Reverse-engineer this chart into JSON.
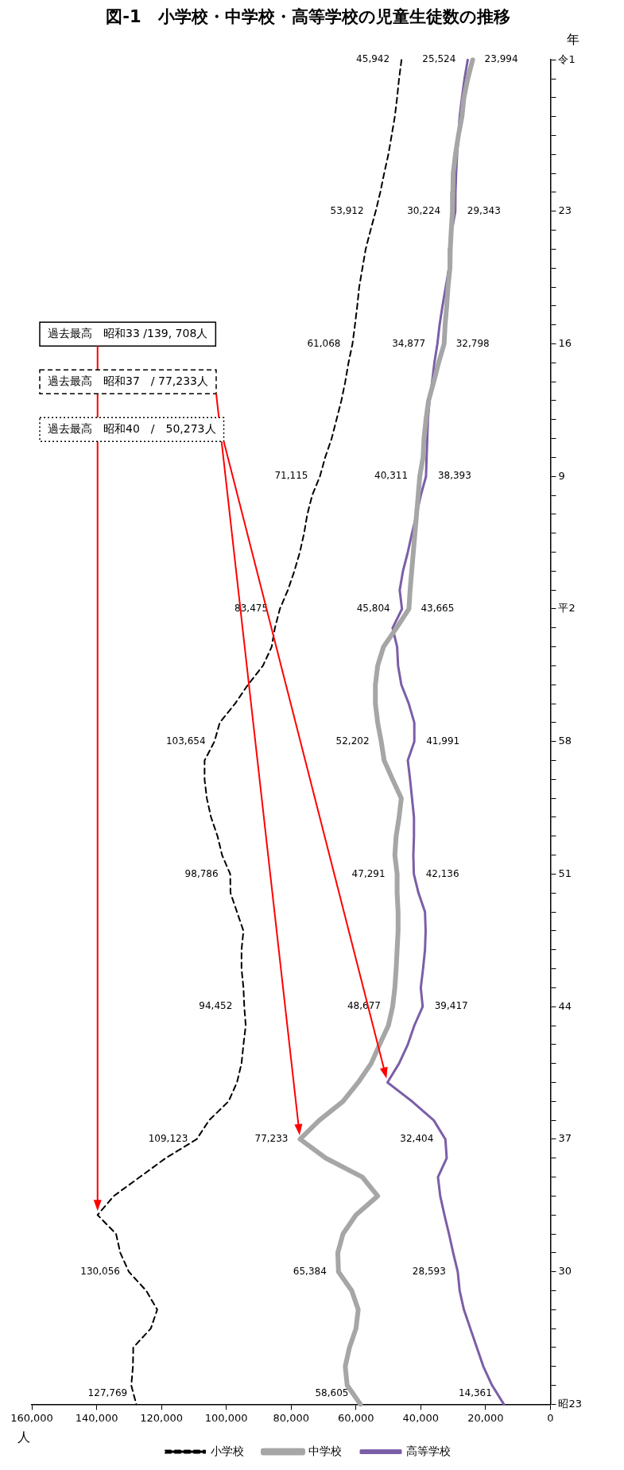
{
  "chart_data": {
    "type": "line",
    "orientation": "horizontal",
    "title": "図-1　小学校・中学校・高等学校の児童生徒数の推移",
    "xlabel": "人",
    "ylabel": "年",
    "categories": [
      "令1",
      null,
      null,
      null,
      null,
      null,
      null,
      null,
      "23",
      null,
      null,
      null,
      null,
      null,
      null,
      "16",
      null,
      null,
      null,
      null,
      null,
      null,
      "9",
      null,
      null,
      null,
      null,
      null,
      null,
      "平2",
      null,
      null,
      null,
      null,
      null,
      null,
      "58",
      null,
      null,
      null,
      null,
      null,
      null,
      "51",
      null,
      null,
      null,
      null,
      null,
      null,
      "44",
      null,
      null,
      null,
      null,
      null,
      null,
      "37",
      null,
      null,
      null,
      null,
      null,
      null,
      "30",
      null,
      null,
      null,
      null,
      null,
      null,
      "昭23"
    ],
    "series": [
      {
        "name": "小学校",
        "color": "#000000",
        "line_style": "dashed",
        "values": [
          45942,
          46700,
          47300,
          48000,
          49000,
          50000,
          51300,
          52500,
          53912,
          55500,
          57000,
          58000,
          59000,
          59600,
          60300,
          61068,
          62300,
          63300,
          64500,
          66000,
          67500,
          69500,
          71115,
          73500,
          75000,
          76000,
          77300,
          79000,
          81000,
          83475,
          85000,
          86000,
          88700,
          93300,
          97300,
          102000,
          103654,
          106700,
          106700,
          106000,
          104700,
          102700,
          101300,
          98786,
          98700,
          96700,
          94700,
          95300,
          95300,
          94700,
          94452,
          94000,
          94700,
          95300,
          96700,
          99300,
          105300,
          109123,
          118700,
          126700,
          134700,
          139708,
          134000,
          132700,
          130056,
          124700,
          121300,
          123300,
          128700,
          128800,
          129300,
          127769
        ],
        "value_labels": [
          "45,942",
          null,
          null,
          null,
          null,
          null,
          null,
          null,
          "53,912",
          null,
          null,
          null,
          null,
          null,
          null,
          "61,068",
          null,
          null,
          null,
          null,
          null,
          null,
          "71,115",
          null,
          null,
          null,
          null,
          null,
          null,
          "83,475",
          null,
          null,
          null,
          null,
          null,
          null,
          "103,654",
          null,
          null,
          null,
          null,
          null,
          null,
          "98,786",
          null,
          null,
          null,
          null,
          null,
          null,
          "94,452",
          null,
          null,
          null,
          null,
          null,
          null,
          "109,123",
          null,
          null,
          null,
          null,
          null,
          null,
          "130,056",
          null,
          null,
          null,
          null,
          null,
          null,
          "127,769"
        ]
      },
      {
        "name": "中学校",
        "color": "#a6a6a6",
        "line_style": "solid",
        "values": [
          23994,
          25500,
          26700,
          27300,
          28400,
          29300,
          30000,
          30100,
          30224,
          30600,
          30900,
          31000,
          31600,
          32000,
          32500,
          32798,
          34500,
          36000,
          37600,
          38400,
          39000,
          39300,
          40311,
          40800,
          41300,
          41800,
          42300,
          42800,
          43300,
          43665,
          47500,
          51500,
          53300,
          54000,
          54000,
          53300,
          52202,
          51300,
          48700,
          46000,
          46700,
          47600,
          48000,
          47291,
          47300,
          47000,
          47000,
          47300,
          47600,
          48000,
          48677,
          50000,
          52700,
          55300,
          59300,
          64000,
          71300,
          77233,
          69300,
          58000,
          53300,
          60000,
          64000,
          65600,
          65384,
          61300,
          59300,
          60000,
          62000,
          63300,
          62700,
          58605
        ],
        "value_labels": [
          "23,994",
          null,
          null,
          null,
          null,
          null,
          null,
          null,
          "30,224",
          null,
          null,
          null,
          null,
          null,
          null,
          "32,798",
          null,
          null,
          null,
          null,
          null,
          null,
          "40,311",
          null,
          null,
          null,
          null,
          null,
          null,
          "43,665",
          null,
          null,
          null,
          null,
          null,
          null,
          "52,202",
          null,
          null,
          null,
          null,
          null,
          null,
          "47,291",
          null,
          null,
          null,
          null,
          null,
          null,
          "48,677",
          null,
          null,
          null,
          null,
          null,
          null,
          "77,233",
          null,
          null,
          null,
          null,
          null,
          null,
          "65,384",
          null,
          null,
          null,
          null,
          null,
          null,
          "58,605"
        ]
      },
      {
        "name": "高等学校",
        "color": "#7b5ea7",
        "line_style": "solid",
        "values": [
          25524,
          26500,
          27300,
          28000,
          28400,
          28800,
          29100,
          29300,
          29343,
          30400,
          31000,
          31300,
          32300,
          33300,
          34200,
          34877,
          35800,
          36500,
          37300,
          37800,
          38000,
          38200,
          38393,
          40000,
          41300,
          42700,
          44000,
          45500,
          46500,
          45804,
          48700,
          47300,
          47000,
          46000,
          43700,
          42000,
          41991,
          44000,
          43300,
          42700,
          42100,
          42100,
          42300,
          42136,
          40700,
          38700,
          38500,
          38700,
          39300,
          40000,
          39417,
          42000,
          44000,
          46700,
          50273,
          42700,
          36000,
          32404,
          32000,
          34700,
          34000,
          32700,
          31300,
          30000,
          28593,
          28000,
          26700,
          24700,
          22700,
          20700,
          18000,
          14361
        ],
        "value_labels": [
          "25,524",
          null,
          null,
          null,
          null,
          null,
          null,
          null,
          "29,343",
          null,
          null,
          null,
          null,
          null,
          null,
          "34,877",
          null,
          null,
          null,
          null,
          null,
          null,
          "38,393",
          null,
          null,
          null,
          null,
          null,
          null,
          "45,804",
          null,
          null,
          null,
          null,
          null,
          null,
          "41,991",
          null,
          null,
          null,
          null,
          null,
          null,
          "42,136",
          null,
          null,
          null,
          null,
          null,
          null,
          "39,417",
          null,
          null,
          null,
          null,
          null,
          null,
          "32,404",
          null,
          null,
          null,
          null,
          null,
          null,
          "28,593",
          null,
          null,
          null,
          null,
          null,
          null,
          "14,361"
        ]
      }
    ],
    "xlim": [
      160000,
      0
    ],
    "xticks": [
      {
        "value": 160000,
        "label": "160,000"
      },
      {
        "value": 140000,
        "label": "140,000"
      },
      {
        "value": 120000,
        "label": "120,000"
      },
      {
        "value": 100000,
        "label": "100,000"
      },
      {
        "value": 80000,
        "label": "80,000"
      },
      {
        "value": 60000,
        "label": "60,000"
      },
      {
        "value": 40000,
        "label": "40,000"
      },
      {
        "value": 20000,
        "label": "20,000"
      },
      0
    ],
    "grid": false,
    "legend": "bottom",
    "annotations": [
      "過去最高　昭和33 /139, 708人",
      "過去最高　昭和37　/ 77,233人",
      "過去最高　昭和40　/　50,273人"
    ]
  }
}
